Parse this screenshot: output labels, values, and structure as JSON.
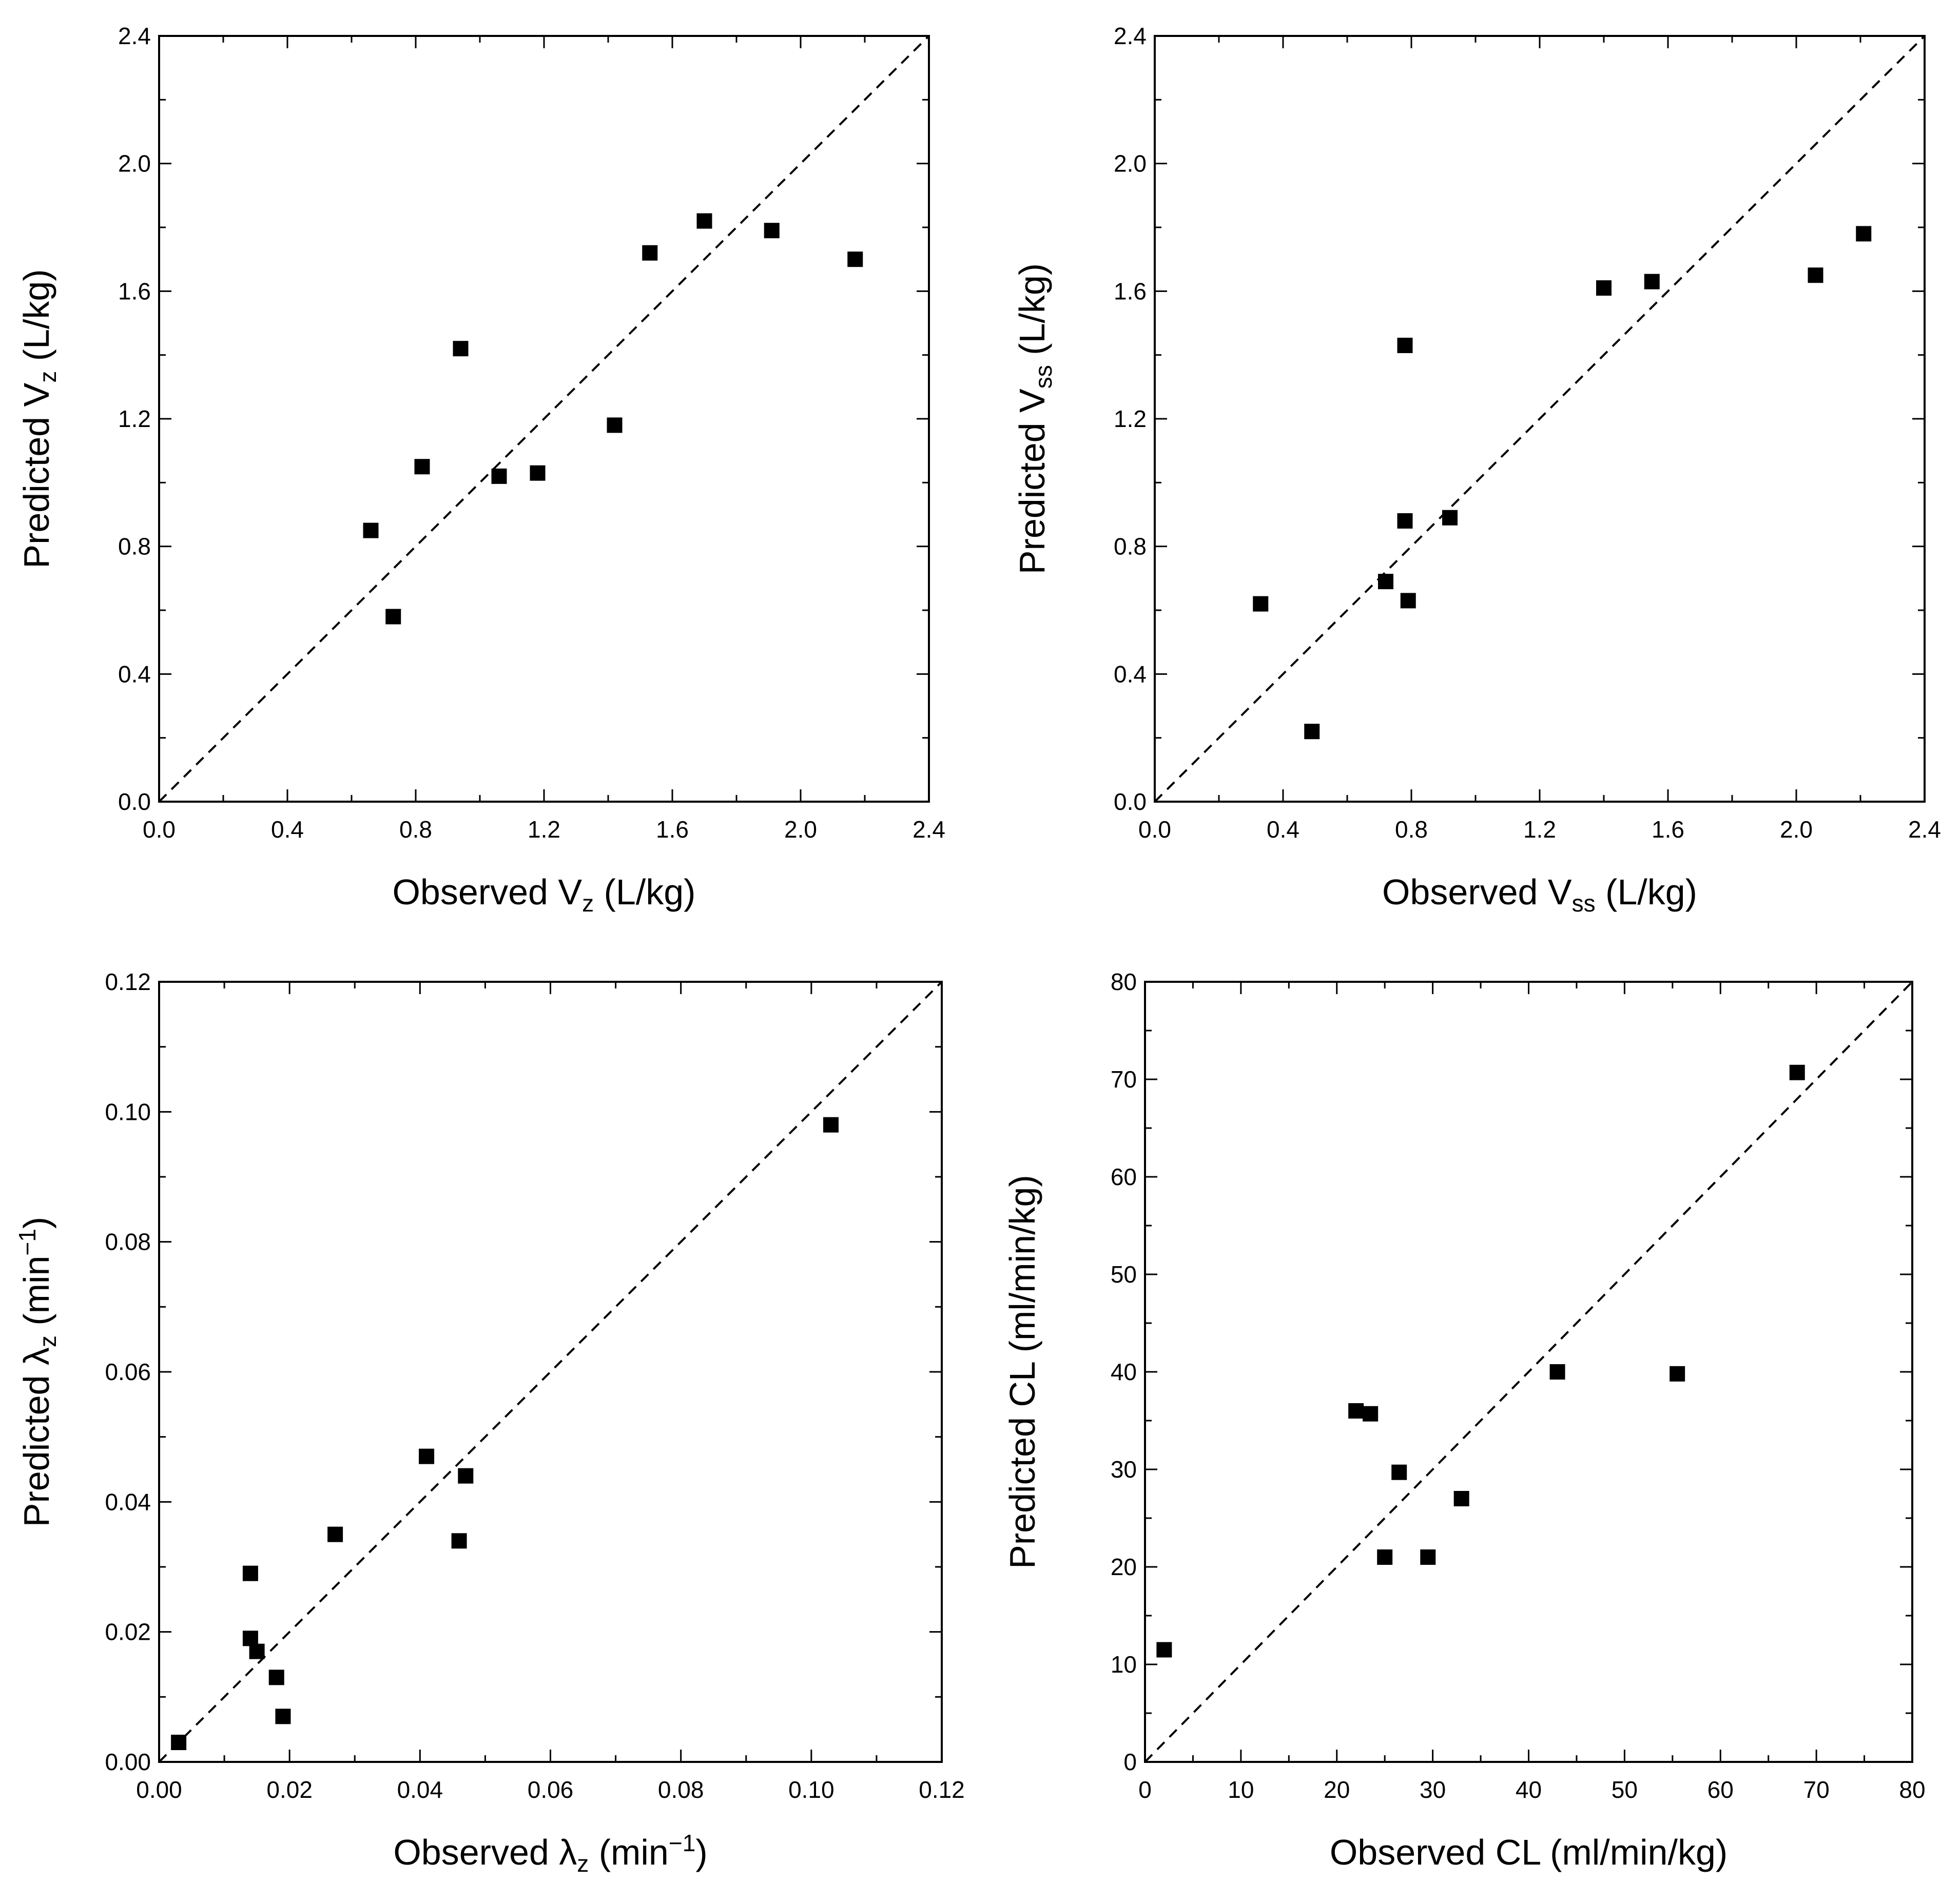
{
  "chart_data": [
    {
      "id": "vz",
      "type": "scatter",
      "xlabel": {
        "pre": "Observed V",
        "sub": "z",
        "post": " (L/kg)"
      },
      "ylabel": {
        "pre": "Predicted V",
        "sub": "z",
        "post": " (L/kg)"
      },
      "xlim": [
        0,
        2.4
      ],
      "ylim": [
        0,
        2.4
      ],
      "xticks": [
        "0.0",
        "0.4",
        "0.8",
        "1.2",
        "1.6",
        "2.0",
        "2.4"
      ],
      "yticks": [
        "0.0",
        "0.4",
        "0.8",
        "1.2",
        "1.6",
        "2.0",
        "2.4"
      ],
      "identity_line": true,
      "points": [
        {
          "x": 0.66,
          "y": 0.85
        },
        {
          "x": 0.73,
          "y": 0.58
        },
        {
          "x": 0.82,
          "y": 1.05
        },
        {
          "x": 0.94,
          "y": 1.42
        },
        {
          "x": 1.06,
          "y": 1.02
        },
        {
          "x": 1.18,
          "y": 1.03
        },
        {
          "x": 1.42,
          "y": 1.18
        },
        {
          "x": 1.53,
          "y": 1.72
        },
        {
          "x": 1.7,
          "y": 1.82
        },
        {
          "x": 1.91,
          "y": 1.79
        },
        {
          "x": 2.17,
          "y": 1.7
        }
      ]
    },
    {
      "id": "vss",
      "type": "scatter",
      "xlabel": {
        "pre": "Observed V",
        "sub": "ss",
        "post": " (L/kg)"
      },
      "ylabel": {
        "pre": "Predicted V",
        "sub": "ss",
        "post": " (L/kg)"
      },
      "xlim": [
        0,
        2.4
      ],
      "ylim": [
        0,
        2.4
      ],
      "xticks": [
        "0.0",
        "0.4",
        "0.8",
        "1.2",
        "1.6",
        "2.0",
        "2.4"
      ],
      "yticks": [
        "0.0",
        "0.4",
        "0.8",
        "1.2",
        "1.6",
        "2.0",
        "2.4"
      ],
      "identity_line": true,
      "points": [
        {
          "x": 0.33,
          "y": 0.62
        },
        {
          "x": 0.49,
          "y": 0.22
        },
        {
          "x": 0.72,
          "y": 0.69
        },
        {
          "x": 0.78,
          "y": 1.43
        },
        {
          "x": 0.78,
          "y": 0.88
        },
        {
          "x": 0.79,
          "y": 0.63
        },
        {
          "x": 0.92,
          "y": 0.89
        },
        {
          "x": 1.4,
          "y": 1.61
        },
        {
          "x": 1.55,
          "y": 1.63
        },
        {
          "x": 2.06,
          "y": 1.65
        },
        {
          "x": 2.21,
          "y": 1.78
        }
      ]
    },
    {
      "id": "lambda",
      "type": "scatter",
      "xlabel": {
        "pre": "Observed ",
        "greek": "λ",
        "sub": "z",
        "post": " (min",
        "sup": "−1",
        "post2": ")"
      },
      "ylabel": {
        "pre": "Predicted ",
        "greek": "λ",
        "sub": "z",
        "post": " (min",
        "sup": "−1",
        "post2": ")"
      },
      "xlim": [
        0,
        0.12
      ],
      "ylim": [
        0,
        0.12
      ],
      "xticks": [
        "0.00",
        "0.02",
        "0.04",
        "0.06",
        "0.08",
        "0.10",
        "0.12"
      ],
      "yticks": [
        "0.00",
        "0.02",
        "0.04",
        "0.06",
        "0.08",
        "0.10",
        "0.12"
      ],
      "identity_line": true,
      "points": [
        {
          "x": 0.003,
          "y": 0.003
        },
        {
          "x": 0.014,
          "y": 0.029
        },
        {
          "x": 0.014,
          "y": 0.019
        },
        {
          "x": 0.015,
          "y": 0.017
        },
        {
          "x": 0.018,
          "y": 0.013
        },
        {
          "x": 0.019,
          "y": 0.007
        },
        {
          "x": 0.027,
          "y": 0.035
        },
        {
          "x": 0.041,
          "y": 0.047
        },
        {
          "x": 0.046,
          "y": 0.034
        },
        {
          "x": 0.047,
          "y": 0.044
        },
        {
          "x": 0.103,
          "y": 0.098
        }
      ]
    },
    {
      "id": "cl",
      "type": "scatter",
      "xlabel": {
        "pre": "Observed CL (ml/min/kg)"
      },
      "ylabel": {
        "pre": "Predicted CL (ml/min/kg)"
      },
      "xlim": [
        0,
        80
      ],
      "ylim": [
        0,
        80
      ],
      "xticks": [
        "0",
        "10",
        "20",
        "30",
        "40",
        "50",
        "60",
        "70",
        "80"
      ],
      "yticks": [
        "0",
        "10",
        "20",
        "30",
        "40",
        "50",
        "60",
        "70",
        "80"
      ],
      "identity_line": true,
      "points": [
        {
          "x": 2,
          "y": 11.5
        },
        {
          "x": 22,
          "y": 36
        },
        {
          "x": 23.5,
          "y": 35.7
        },
        {
          "x": 25,
          "y": 21
        },
        {
          "x": 26.5,
          "y": 29.7
        },
        {
          "x": 29.5,
          "y": 21
        },
        {
          "x": 33,
          "y": 27
        },
        {
          "x": 43,
          "y": 40
        },
        {
          "x": 55.5,
          "y": 39.8
        },
        {
          "x": 68,
          "y": 70.7
        }
      ]
    }
  ]
}
